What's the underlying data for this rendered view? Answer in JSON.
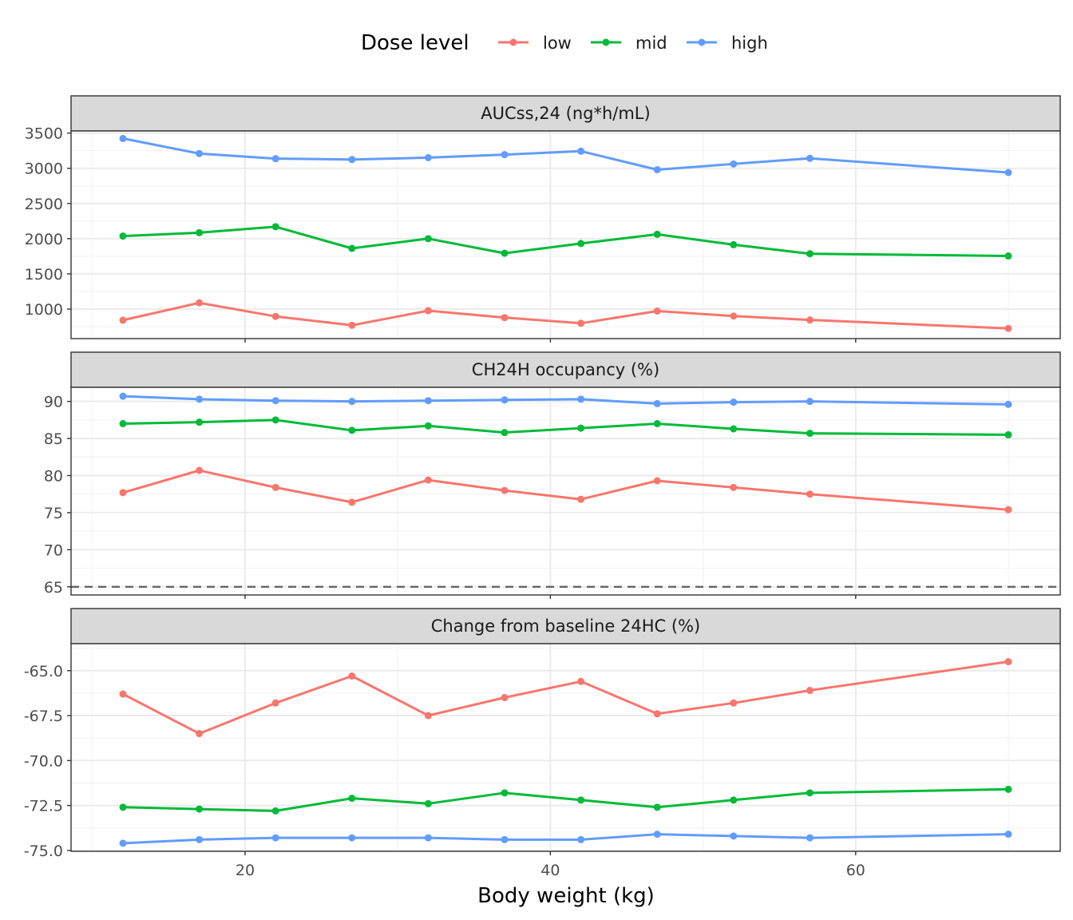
{
  "chart_data": {
    "type": "line",
    "legend": {
      "title": "Dose level",
      "position": "top",
      "entries": [
        {
          "name": "low",
          "color": "#F8766D"
        },
        {
          "name": "mid",
          "color": "#00BA38"
        },
        {
          "name": "high",
          "color": "#619CFF"
        }
      ]
    },
    "xlabel": "Body weight (kg)",
    "xlim": [
      8.6,
      73.4
    ],
    "xticks": [
      20,
      40,
      60
    ],
    "x": [
      12,
      17,
      22,
      27,
      32,
      37,
      42,
      47,
      52,
      57,
      70
    ],
    "grid": true,
    "panels": [
      {
        "title": "AUCss,24 (ng*h/mL)",
        "ylim": [
          580,
          3530
        ],
        "yticks": [
          1000,
          1500,
          2000,
          2500,
          3000,
          3500
        ],
        "series": [
          {
            "name": "low",
            "values": [
              842,
              1088,
              895,
              769,
              977,
              878,
              798,
              972,
              901,
              845,
              725
            ]
          },
          {
            "name": "mid",
            "values": [
              2037,
              2085,
              2170,
              1862,
              2000,
              1793,
              1931,
              2062,
              1914,
              1786,
              1754
            ]
          },
          {
            "name": "high",
            "values": [
              3423,
              3209,
              3137,
              3124,
              3151,
              3194,
              3243,
              2980,
              3061,
              3141,
              2940
            ]
          }
        ]
      },
      {
        "title": "CH24H occupancy (%)",
        "ylim": [
          63.9,
          91.9
        ],
        "yticks": [
          65,
          70,
          75,
          80,
          85,
          90
        ],
        "reference_line": 65,
        "series": [
          {
            "name": "low",
            "values": [
              77.7,
              80.7,
              78.4,
              76.4,
              79.4,
              78.0,
              76.8,
              79.3,
              78.4,
              77.5,
              75.4
            ]
          },
          {
            "name": "mid",
            "values": [
              87.0,
              87.2,
              87.5,
              86.1,
              86.7,
              85.8,
              86.4,
              87.0,
              86.3,
              85.7,
              85.5
            ]
          },
          {
            "name": "high",
            "values": [
              90.7,
              90.3,
              90.1,
              90.0,
              90.1,
              90.2,
              90.3,
              89.7,
              89.9,
              90.0,
              89.6
            ]
          }
        ]
      },
      {
        "title": "Change from baseline 24HC (%)",
        "ylim": [
          -75.05,
          -63.5
        ],
        "yticks": [
          -75.0,
          -72.5,
          -70.0,
          -67.5,
          -65.0
        ],
        "ytick_labels": [
          "-75.0",
          "-72.5",
          "-70.0",
          "-67.5",
          "-65.0"
        ],
        "series": [
          {
            "name": "low",
            "values": [
              -66.3,
              -68.5,
              -66.8,
              -65.3,
              -67.5,
              -66.5,
              -65.6,
              -67.4,
              -66.8,
              -66.1,
              -64.5
            ]
          },
          {
            "name": "mid",
            "values": [
              -72.6,
              -72.7,
              -72.8,
              -72.1,
              -72.4,
              -71.8,
              -72.2,
              -72.6,
              -72.2,
              -71.8,
              -71.6
            ]
          },
          {
            "name": "high",
            "values": [
              -74.6,
              -74.4,
              -74.3,
              -74.3,
              -74.3,
              -74.4,
              -74.4,
              -74.1,
              -74.2,
              -74.3,
              -74.1
            ]
          }
        ]
      }
    ]
  }
}
